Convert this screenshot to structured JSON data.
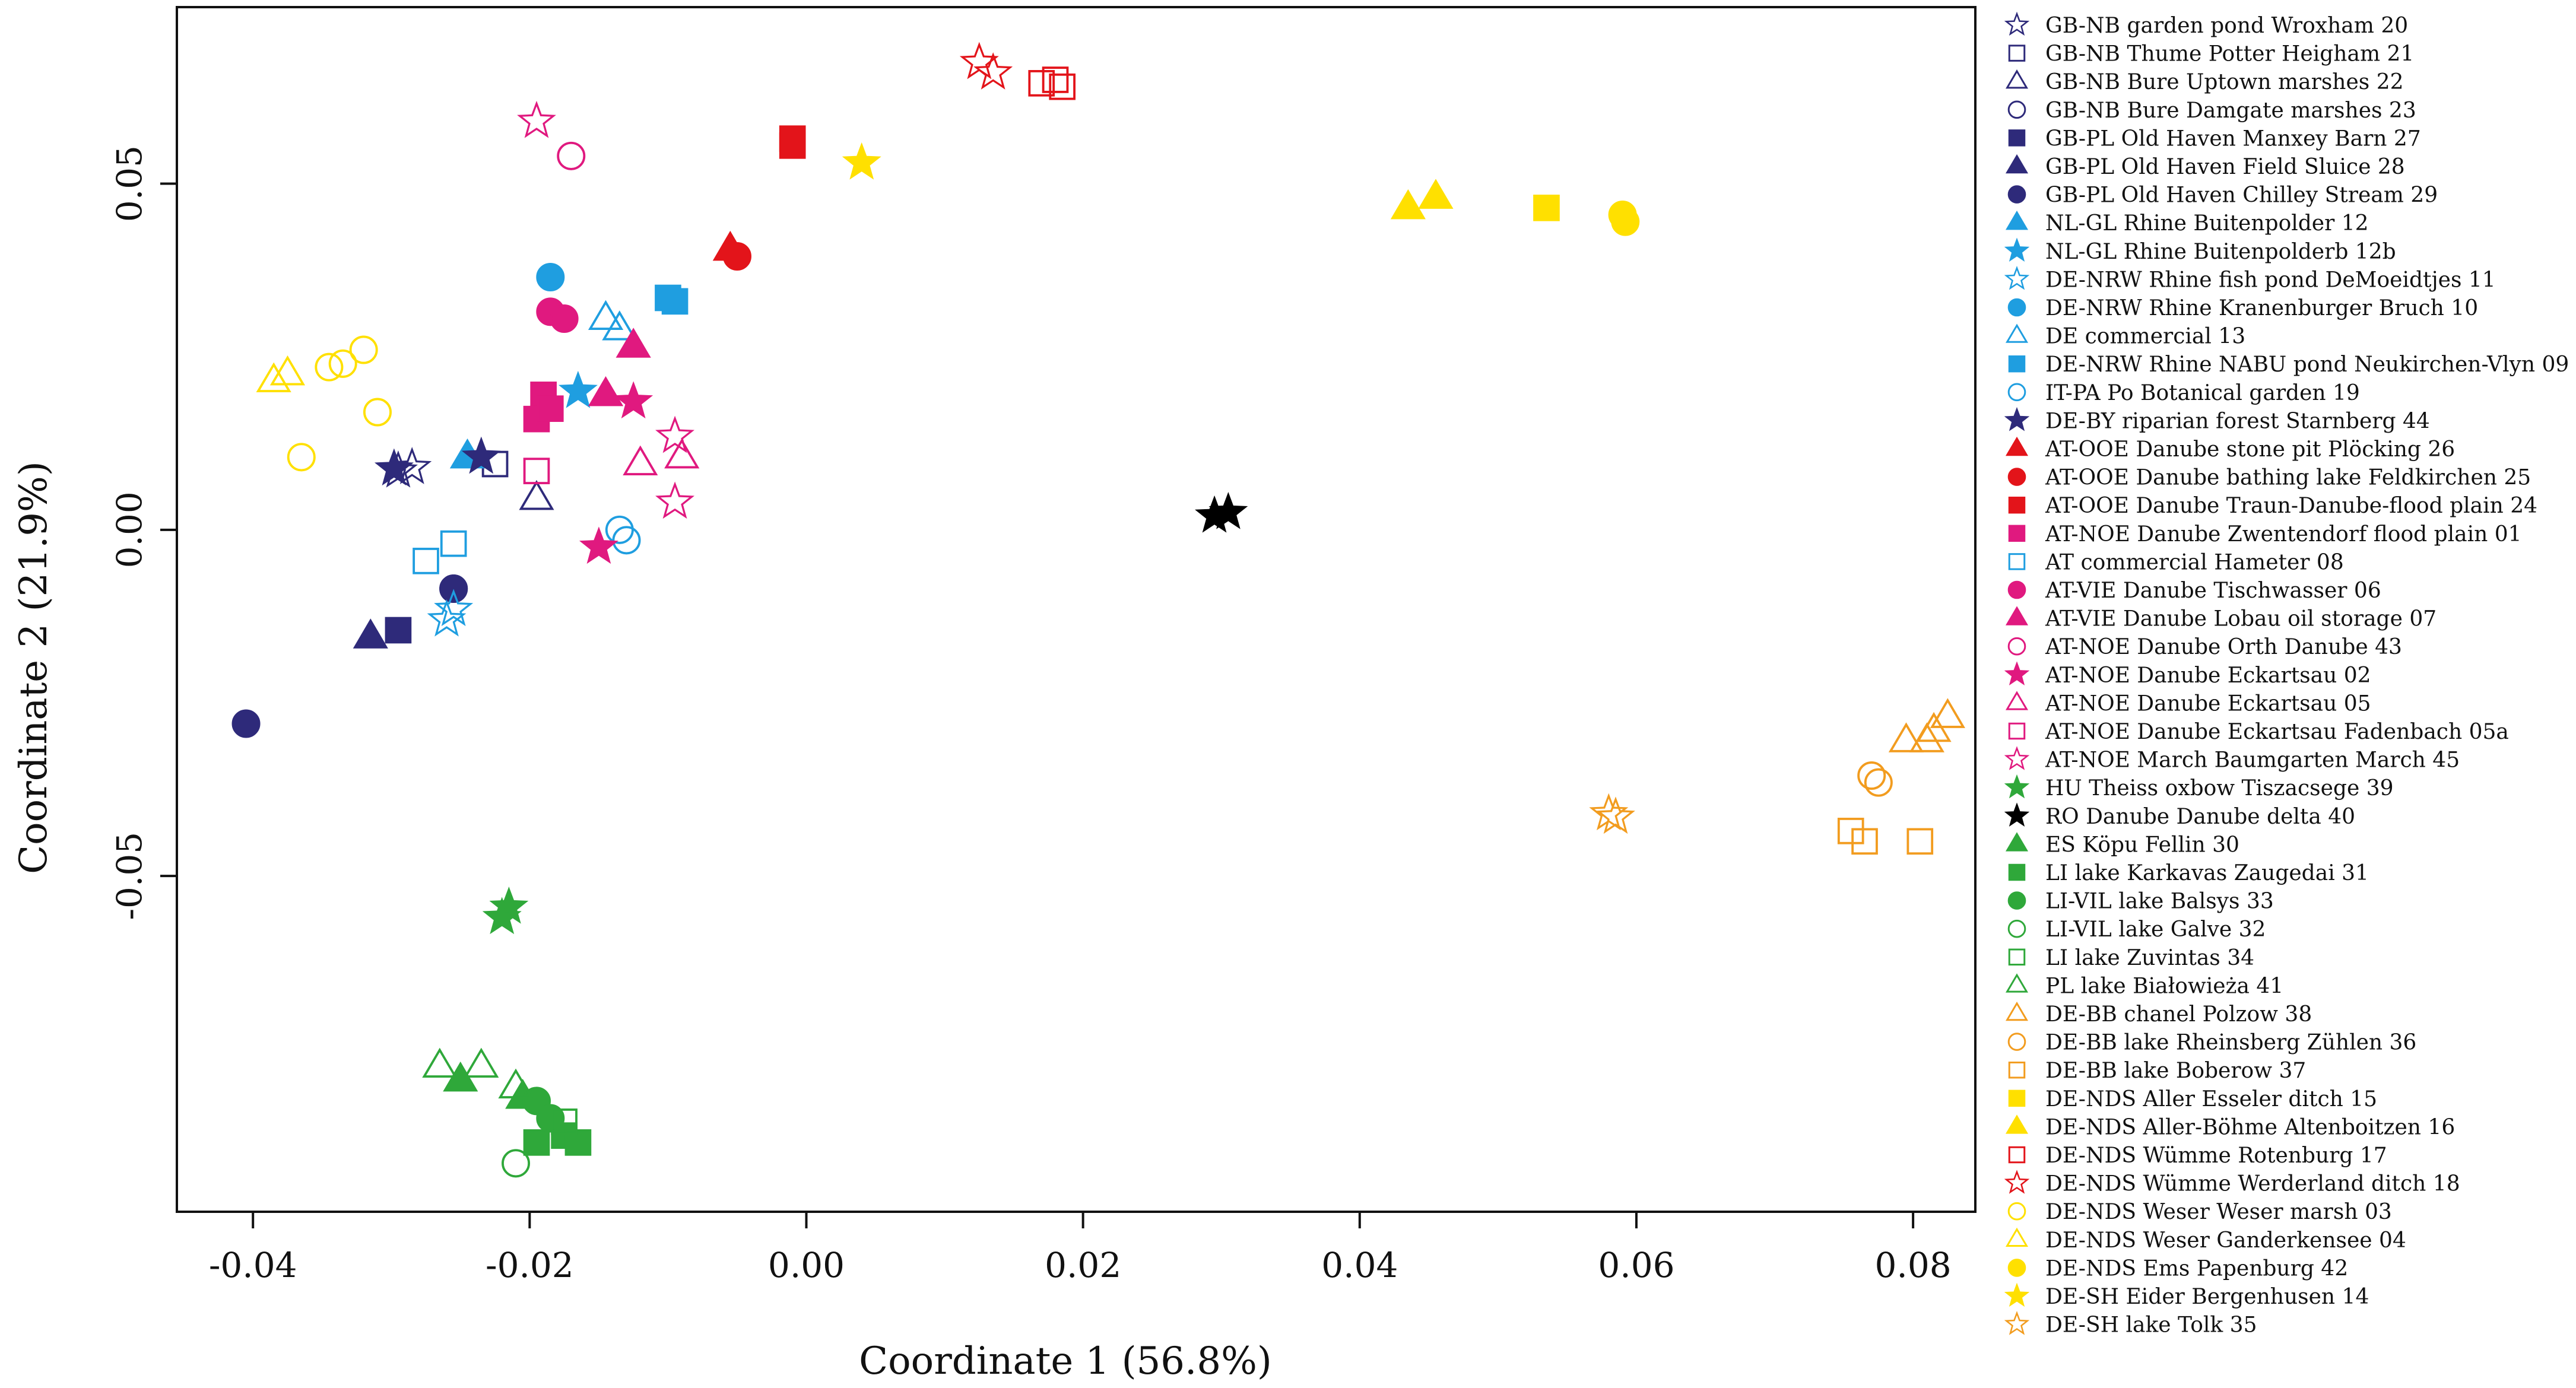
{
  "chart_data": {
    "type": "scatter",
    "title": "",
    "xlabel": "Coordinate 1 (56.8%)",
    "ylabel": "Coordinate 2 (21.9%)",
    "xlim": [
      -0.0455,
      0.0845
    ],
    "ylim": [
      -0.0985,
      0.0755
    ],
    "xticks": [
      -0.04,
      -0.02,
      0.0,
      0.02,
      0.04,
      0.06,
      0.08
    ],
    "xtick_labels": [
      "-0.04",
      "-0.02",
      "0.00",
      "0.02",
      "0.04",
      "0.06",
      "0.08"
    ],
    "yticks": [
      -0.05,
      0.0,
      0.05
    ],
    "ytick_labels": [
      "-0.05",
      "0.00",
      "0.05"
    ],
    "grid": false,
    "legend_position": "outside-right",
    "series": [
      {
        "name": "GB-NB garden pond Wroxham 20",
        "color": "#2e2a7a",
        "marker": "star",
        "filled": false,
        "points": [
          [
            -0.0295,
            0.0085
          ],
          [
            -0.0285,
            0.009
          ]
        ]
      },
      {
        "name": "GB-NB Thume Potter Heigham 21",
        "color": "#2e2a7a",
        "marker": "square",
        "filled": false,
        "points": [
          [
            -0.0225,
            0.0095
          ]
        ]
      },
      {
        "name": "GB-NB Bure Uptown marshes 22",
        "color": "#2e2a7a",
        "marker": "triangle",
        "filled": false,
        "points": [
          [
            -0.0195,
            0.0045
          ]
        ]
      },
      {
        "name": "GB-NB Bure Damgate marshes 23",
        "color": "#2e2a7a",
        "marker": "circle",
        "filled": false,
        "points": [
          [
            -0.0255,
            -0.0085
          ]
        ]
      },
      {
        "name": "GB-PL Old Haven Manxey Barn 27",
        "color": "#2e2a7a",
        "marker": "square",
        "filled": true,
        "points": [
          [
            -0.0295,
            -0.0145
          ]
        ]
      },
      {
        "name": "GB-PL Old Haven Field Sluice 28",
        "color": "#2e2a7a",
        "marker": "triangle",
        "filled": true,
        "points": [
          [
            -0.0315,
            -0.0155
          ]
        ]
      },
      {
        "name": "GB-PL Old Haven Chilley Stream 29",
        "color": "#2e2a7a",
        "marker": "circle",
        "filled": true,
        "points": [
          [
            -0.0405,
            -0.028
          ],
          [
            -0.0255,
            -0.0085
          ]
        ]
      },
      {
        "name": "NL-GL Rhine Buitenpolder 12",
        "color": "#1f9ee0",
        "marker": "triangle",
        "filled": true,
        "points": [
          [
            -0.0245,
            0.0105
          ]
        ]
      },
      {
        "name": "NL-GL Rhine Buitenpolderb 12b",
        "color": "#1f9ee0",
        "marker": "star",
        "filled": true,
        "points": [
          [
            -0.0165,
            0.02
          ]
        ]
      },
      {
        "name": "DE-NRW Rhine fish pond DeMoeidtjes 11",
        "color": "#1f9ee0",
        "marker": "star",
        "filled": false,
        "points": [
          [
            -0.0255,
            -0.0115
          ],
          [
            -0.026,
            -0.013
          ]
        ]
      },
      {
        "name": "DE-NRW Rhine Kranenburger Bruch 10",
        "color": "#1f9ee0",
        "marker": "circle",
        "filled": true,
        "points": [
          [
            -0.0185,
            0.0365
          ]
        ]
      },
      {
        "name": "DE commercial 13",
        "color": "#1f9ee0",
        "marker": "triangle",
        "filled": false,
        "points": [
          [
            -0.0145,
            0.0305
          ],
          [
            -0.0135,
            0.029
          ]
        ]
      },
      {
        "name": "DE-NRW Rhine NABU pond Neukirchen-Vlyn 09",
        "color": "#1f9ee0",
        "marker": "square",
        "filled": true,
        "points": [
          [
            -0.0095,
            0.033
          ],
          [
            -0.01,
            0.0335
          ]
        ]
      },
      {
        "name": "IT-PA Po Botanical garden 19",
        "color": "#1f9ee0",
        "marker": "circle",
        "filled": false,
        "points": [
          [
            -0.0135,
            0.0
          ],
          [
            -0.013,
            -0.0015
          ]
        ]
      },
      {
        "name": "DE-BY riparian forest Starnberg 44",
        "color": "#2e2a7a",
        "marker": "star",
        "filled": true,
        "points": [
          [
            -0.0298,
            0.0088
          ],
          [
            -0.0235,
            0.0105
          ]
        ]
      },
      {
        "name": "AT-OOE Danube stone pit Plöcking 26",
        "color": "#e3141a",
        "marker": "triangle",
        "filled": true,
        "points": [
          [
            -0.0055,
            0.0405
          ]
        ]
      },
      {
        "name": "AT-OOE Danube bathing lake Feldkirchen 25",
        "color": "#e3141a",
        "marker": "circle",
        "filled": true,
        "points": [
          [
            -0.005,
            0.0395
          ]
        ]
      },
      {
        "name": "AT-OOE Danube Traun-Danube-flood plain 24",
        "color": "#e3141a",
        "marker": "square",
        "filled": true,
        "points": [
          [
            -0.001,
            0.0565
          ],
          [
            -0.001,
            0.0555
          ]
        ]
      },
      {
        "name": "AT-NOE Danube Zwentendorf flood plain 01",
        "color": "#e0197f",
        "marker": "square",
        "filled": true,
        "points": [
          [
            -0.019,
            0.0195
          ],
          [
            -0.0195,
            0.016
          ],
          [
            -0.0185,
            0.0175
          ]
        ]
      },
      {
        "name": "AT commercial Hameter 08",
        "color": "#1f9ee0",
        "marker": "square",
        "filled": false,
        "points": [
          [
            -0.0255,
            -0.002
          ],
          [
            -0.0275,
            -0.0045
          ]
        ]
      },
      {
        "name": "AT-VIE Danube Tischwasser 06",
        "color": "#e0197f",
        "marker": "circle",
        "filled": true,
        "points": [
          [
            -0.0185,
            0.0315
          ],
          [
            -0.0175,
            0.0305
          ]
        ]
      },
      {
        "name": "AT-VIE Danube Lobau oil storage 07",
        "color": "#e0197f",
        "marker": "triangle",
        "filled": true,
        "points": [
          [
            -0.0145,
            0.0195
          ],
          [
            -0.0125,
            0.0265
          ]
        ]
      },
      {
        "name": "AT-NOE Danube Orth Danube 43",
        "color": "#e0197f",
        "marker": "circle",
        "filled": false,
        "points": [
          [
            -0.017,
            0.054
          ]
        ]
      },
      {
        "name": "AT-NOE Danube Eckartsau 02",
        "color": "#e0197f",
        "marker": "star",
        "filled": true,
        "points": [
          [
            -0.015,
            -0.0025
          ],
          [
            -0.0125,
            0.0185
          ]
        ]
      },
      {
        "name": "AT-NOE Danube Eckartsau 05",
        "color": "#e0197f",
        "marker": "triangle",
        "filled": false,
        "points": [
          [
            -0.012,
            0.0095
          ],
          [
            -0.009,
            0.0105
          ]
        ]
      },
      {
        "name": "AT-NOE Danube Eckartsau Fadenbach 05a",
        "color": "#e0197f",
        "marker": "square",
        "filled": false,
        "points": [
          [
            -0.0195,
            0.0085
          ]
        ]
      },
      {
        "name": "AT-NOE March Baumgarten March 45",
        "color": "#e0197f",
        "marker": "star",
        "filled": false,
        "points": [
          [
            -0.0195,
            0.059
          ],
          [
            -0.0095,
            0.0135
          ],
          [
            -0.0095,
            0.004
          ]
        ]
      },
      {
        "name": "HU Theiss oxbow Tiszacsege 39",
        "color": "#2fa83a",
        "marker": "star",
        "filled": true,
        "points": [
          [
            -0.0215,
            -0.0545
          ],
          [
            -0.022,
            -0.056
          ]
        ]
      },
      {
        "name": "RO Danube Danube delta 40",
        "color": "#000000",
        "marker": "star",
        "filled": true,
        "points": [
          [
            0.0295,
            0.002
          ],
          [
            0.0305,
            0.0025
          ]
        ]
      },
      {
        "name": "ES Köpu Fellin 30",
        "color": "#2fa83a",
        "marker": "triangle",
        "filled": true,
        "points": [
          [
            -0.025,
            -0.0795
          ],
          [
            -0.0205,
            -0.082
          ]
        ]
      },
      {
        "name": "LI lake Karkavas Zaugedai 31",
        "color": "#2fa83a",
        "marker": "square",
        "filled": true,
        "points": [
          [
            -0.0195,
            -0.0885
          ],
          [
            -0.0175,
            -0.0875
          ],
          [
            -0.0165,
            -0.0885
          ]
        ]
      },
      {
        "name": "LI-VIL lake Balsys 33",
        "color": "#2fa83a",
        "marker": "circle",
        "filled": true,
        "points": [
          [
            -0.0195,
            -0.0825
          ],
          [
            -0.0185,
            -0.085
          ]
        ]
      },
      {
        "name": "LI-VIL lake Galve 32",
        "color": "#2fa83a",
        "marker": "circle",
        "filled": false,
        "points": [
          [
            -0.021,
            -0.0915
          ]
        ]
      },
      {
        "name": "LI lake Zuvintas 34",
        "color": "#2fa83a",
        "marker": "square",
        "filled": false,
        "points": [
          [
            -0.0175,
            -0.0855
          ]
        ]
      },
      {
        "name": "PL lake Białowieża 41",
        "color": "#2fa83a",
        "marker": "triangle",
        "filled": false,
        "points": [
          [
            -0.0265,
            -0.0775
          ],
          [
            -0.0235,
            -0.0775
          ],
          [
            -0.021,
            -0.0805
          ]
        ]
      },
      {
        "name": "DE-BB chanel Polzow 38",
        "color": "#f29c1f",
        "marker": "triangle",
        "filled": false,
        "points": [
          [
            0.0795,
            -0.0305
          ],
          [
            0.0815,
            -0.029
          ],
          [
            0.0825,
            -0.027
          ],
          [
            0.081,
            -0.0305
          ]
        ]
      },
      {
        "name": "DE-BB lake Rheinsberg Zühlen 36",
        "color": "#f29c1f",
        "marker": "circle",
        "filled": false,
        "points": [
          [
            0.077,
            -0.0355
          ],
          [
            0.0775,
            -0.0365
          ]
        ]
      },
      {
        "name": "DE-BB lake Boberow 37",
        "color": "#f29c1f",
        "marker": "square",
        "filled": false,
        "points": [
          [
            0.0755,
            -0.0435
          ],
          [
            0.0765,
            -0.045
          ],
          [
            0.0805,
            -0.045
          ]
        ]
      },
      {
        "name": "DE-NDS Aller Esseler ditch 15",
        "color": "#ffe000",
        "marker": "square",
        "filled": true,
        "points": [
          [
            0.0535,
            0.0465
          ]
        ]
      },
      {
        "name": "DE-NDS Aller-Böhme Altenboitzen 16",
        "color": "#ffe000",
        "marker": "triangle",
        "filled": true,
        "points": [
          [
            0.0435,
            0.0465
          ],
          [
            0.0455,
            0.048
          ]
        ]
      },
      {
        "name": "DE-NDS Wümme Rotenburg 17",
        "color": "#e3141a",
        "marker": "square",
        "filled": false,
        "points": [
          [
            0.017,
            0.0645
          ],
          [
            0.018,
            0.065
          ],
          [
            0.0185,
            0.064
          ]
        ]
      },
      {
        "name": "DE-NDS Wümme Werderland ditch 18",
        "color": "#e3141a",
        "marker": "star",
        "filled": false,
        "points": [
          [
            0.0125,
            0.0675
          ],
          [
            0.0135,
            0.066
          ]
        ]
      },
      {
        "name": "DE-NDS Weser Weser marsh 03",
        "color": "#ffe000",
        "marker": "circle",
        "filled": false,
        "points": [
          [
            -0.0365,
            0.0105
          ],
          [
            -0.0345,
            0.0235
          ],
          [
            -0.0335,
            0.024
          ],
          [
            -0.032,
            0.026
          ],
          [
            -0.031,
            0.017
          ]
        ]
      },
      {
        "name": "DE-NDS Weser Ganderkensee 04",
        "color": "#ffe000",
        "marker": "triangle",
        "filled": false,
        "points": [
          [
            -0.0385,
            0.0215
          ],
          [
            -0.0375,
            0.0225
          ]
        ]
      },
      {
        "name": "DE-NDS Ems Papenburg 42",
        "color": "#ffe000",
        "marker": "circle",
        "filled": true,
        "points": [
          [
            0.059,
            0.0455
          ],
          [
            0.0592,
            0.0445
          ]
        ]
      },
      {
        "name": "DE-SH Eider Bergenhusen 14",
        "color": "#ffe000",
        "marker": "star",
        "filled": true,
        "points": [
          [
            0.004,
            0.053
          ]
        ]
      },
      {
        "name": "DE-SH lake Tolk 35",
        "color": "#f29c1f",
        "marker": "star",
        "filled": false,
        "points": [
          [
            0.058,
            -0.041
          ],
          [
            0.0585,
            -0.0415
          ]
        ]
      }
    ]
  }
}
